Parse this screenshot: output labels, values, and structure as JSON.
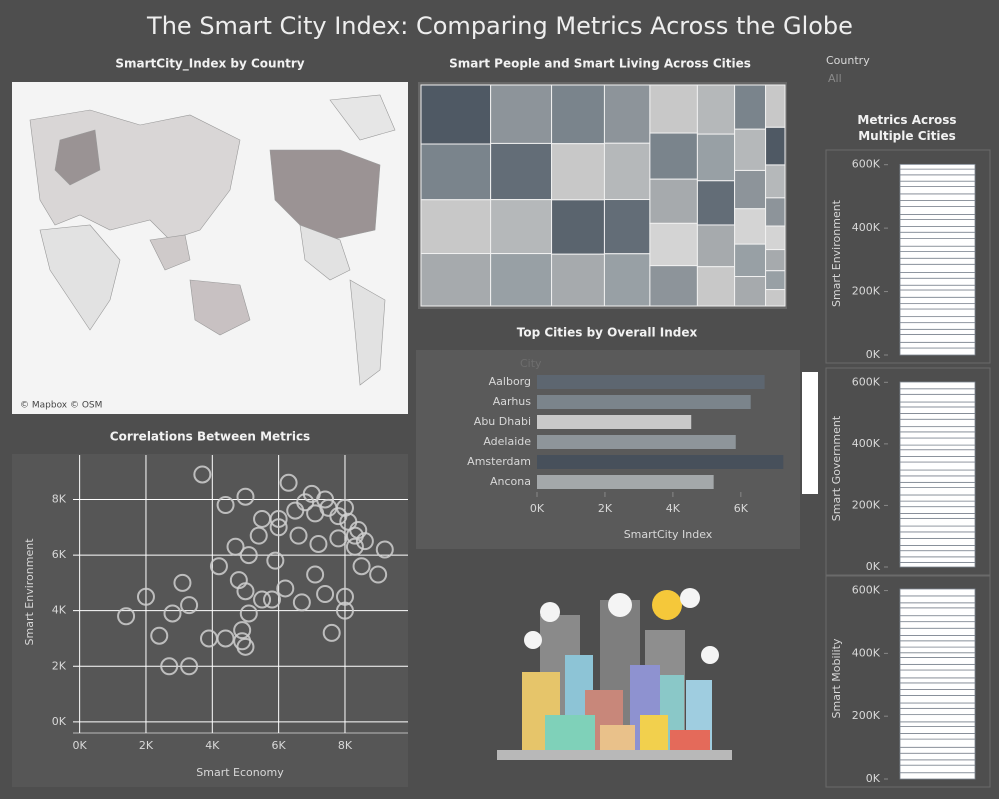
{
  "title": "The Smart City Index: Comparing Metrics Across the Globe",
  "filter": {
    "label": "Country",
    "value": "All"
  },
  "chart_data": [
    {
      "type": "map",
      "title": "SmartCity_Index by Country",
      "attribution": "© Mapbox © OSM"
    },
    {
      "type": "treemap",
      "title": "Smart People and Smart Living Across Cities",
      "values": [
        9,
        8.5,
        8.2,
        8,
        7.8,
        7.5,
        7.2,
        7,
        6.8,
        6.5,
        6.3,
        6,
        5.8,
        5.6,
        5.4,
        5.2,
        5,
        4.8,
        4.6,
        4.4,
        4.2,
        4,
        3.8,
        3.6,
        3.4,
        3.2,
        3,
        2.8,
        2.6,
        2.4,
        2.2,
        2,
        1.8,
        1.6,
        1.4,
        1.2,
        1,
        0.9,
        0.8,
        0.7
      ],
      "colors": [
        "#4f5964",
        "#7a848c",
        "#c8c8c8",
        "#a6aaad",
        "#8d949a",
        "#636d77",
        "#b5b8ba",
        "#98a0a5",
        "#7a848c",
        "#c8c8c8",
        "#5a646e",
        "#a6aaad",
        "#8d949a",
        "#b5b8ba",
        "#636d77",
        "#98a0a5",
        "#c8c8c8",
        "#7a848c",
        "#a6aaad",
        "#d4d4d4",
        "#8d949a",
        "#b5b8ba",
        "#98a0a5",
        "#636d77",
        "#a6aaad",
        "#c8c8c8",
        "#7a848c",
        "#b5b8ba",
        "#8d949a",
        "#d4d4d4",
        "#98a0a5",
        "#a6aaad",
        "#c8c8c8",
        "#4f5964",
        "#b5b8ba",
        "#8d949a",
        "#d4d4d4",
        "#a6aaad",
        "#98a0a5",
        "#c8c8c8"
      ]
    },
    {
      "type": "hbar",
      "title": "Top Cities by Overall Index",
      "category_label": "City",
      "x_label": "SmartCity Index",
      "categories": [
        "Aalborg",
        "Aarhus",
        "Abu Dhabi",
        "Adelaide",
        "Amsterdam",
        "Ancona"
      ],
      "values": [
        6700,
        6290,
        4540,
        5850,
        7250,
        5200
      ],
      "colors": [
        "#5d6670",
        "#7b848b",
        "#c9c9c9",
        "#8e959a",
        "#47505b",
        "#a4a8aa"
      ],
      "xlim": [
        0,
        7300
      ],
      "xticks": [
        {
          "value": 0,
          "label": "0K"
        },
        {
          "value": 2000,
          "label": "2K"
        },
        {
          "value": 4000,
          "label": "4K"
        },
        {
          "value": 6000,
          "label": "6K"
        }
      ]
    },
    {
      "type": "scatter",
      "title": "Correlations Between Metrics",
      "x_label": "Smart Economy",
      "y_label": "Smart Environment",
      "x": [
        4400,
        5000,
        5500,
        6000,
        6500,
        6800,
        7100,
        7500,
        7800,
        8100,
        8400,
        8600,
        8300,
        7800,
        7200,
        6600,
        5900,
        6200,
        7100,
        7400,
        8000,
        8000,
        7600,
        8500,
        9000,
        9200,
        6700,
        5800,
        5000,
        4800,
        4700,
        5100,
        5400,
        4200,
        3300,
        3100,
        2000,
        1400,
        2400,
        2700,
        3300,
        2800,
        3900,
        4400,
        4900,
        4900,
        5000,
        5100,
        3700,
        6300,
        6000,
        7000,
        7400,
        8000,
        8300,
        5500
      ],
      "values": [
        7800,
        8100,
        7300,
        7000,
        7600,
        7900,
        7500,
        7700,
        7400,
        7200,
        6900,
        6500,
        6300,
        6600,
        6400,
        6700,
        5800,
        4800,
        5300,
        4600,
        4500,
        4000,
        3200,
        5600,
        5300,
        6200,
        4300,
        4400,
        4700,
        5100,
        6300,
        6000,
        6700,
        5600,
        4200,
        5000,
        4500,
        3800,
        3100,
        2000,
        2000,
        3900,
        3000,
        3000,
        3300,
        2900,
        2700,
        3900,
        8900,
        8600,
        7300,
        8200,
        8000,
        7700,
        6700,
        4400
      ],
      "color": "#cfcfcf",
      "grid": true,
      "xlim": [
        -200,
        9900
      ],
      "ylim": [
        -400,
        9600
      ],
      "xticks": [
        {
          "value": 0,
          "label": "0K"
        },
        {
          "value": 2000,
          "label": "2K"
        },
        {
          "value": 4000,
          "label": "4K"
        },
        {
          "value": 6000,
          "label": "6K"
        },
        {
          "value": 8000,
          "label": "8K"
        }
      ],
      "yticks": [
        {
          "value": 0,
          "label": "0K"
        },
        {
          "value": 2000,
          "label": "2K"
        },
        {
          "value": 4000,
          "label": "4K"
        },
        {
          "value": 6000,
          "label": "6K"
        },
        {
          "value": 8000,
          "label": "8K"
        }
      ]
    },
    {
      "type": "stacked_panels",
      "title": "Metrics Across Multiple Cities",
      "ylim": [
        0,
        640000
      ],
      "yticks": [
        {
          "value": 0,
          "label": "0K"
        },
        {
          "value": 200000,
          "label": "200K"
        },
        {
          "value": 400000,
          "label": "400K"
        },
        {
          "value": 600000,
          "label": "600K"
        }
      ],
      "panels": [
        {
          "y_label": "Smart Environment",
          "values": [
            22000,
            18000,
            25000,
            16000,
            21000,
            19000,
            24000,
            17000,
            20000,
            23000,
            15000,
            22000,
            18000,
            26000,
            19000,
            21000,
            17000,
            24000,
            20000,
            18000,
            22000,
            16000,
            25000,
            19000,
            21000,
            23000,
            17000,
            20000,
            18000,
            15000
          ]
        },
        {
          "y_label": "Smart Government",
          "values": [
            15000,
            18000,
            20000,
            17000,
            23000,
            21000,
            19000,
            25000,
            16000,
            22000,
            18000,
            20000,
            24000,
            17000,
            21000,
            19000,
            26000,
            18000,
            22000,
            15000,
            23000,
            20000,
            17000,
            24000,
            19000,
            21000,
            16000,
            25000,
            18000,
            22000
          ]
        },
        {
          "y_label": "Smart Mobility",
          "values": [
            20000,
            24000,
            17000,
            21000,
            19000,
            26000,
            18000,
            22000,
            15000,
            23000,
            20000,
            17000,
            24000,
            19000,
            21000,
            16000,
            25000,
            18000,
            22000,
            15000,
            18000,
            20000,
            17000,
            23000,
            21000,
            19000,
            25000,
            16000,
            22000,
            22000
          ]
        }
      ]
    }
  ]
}
